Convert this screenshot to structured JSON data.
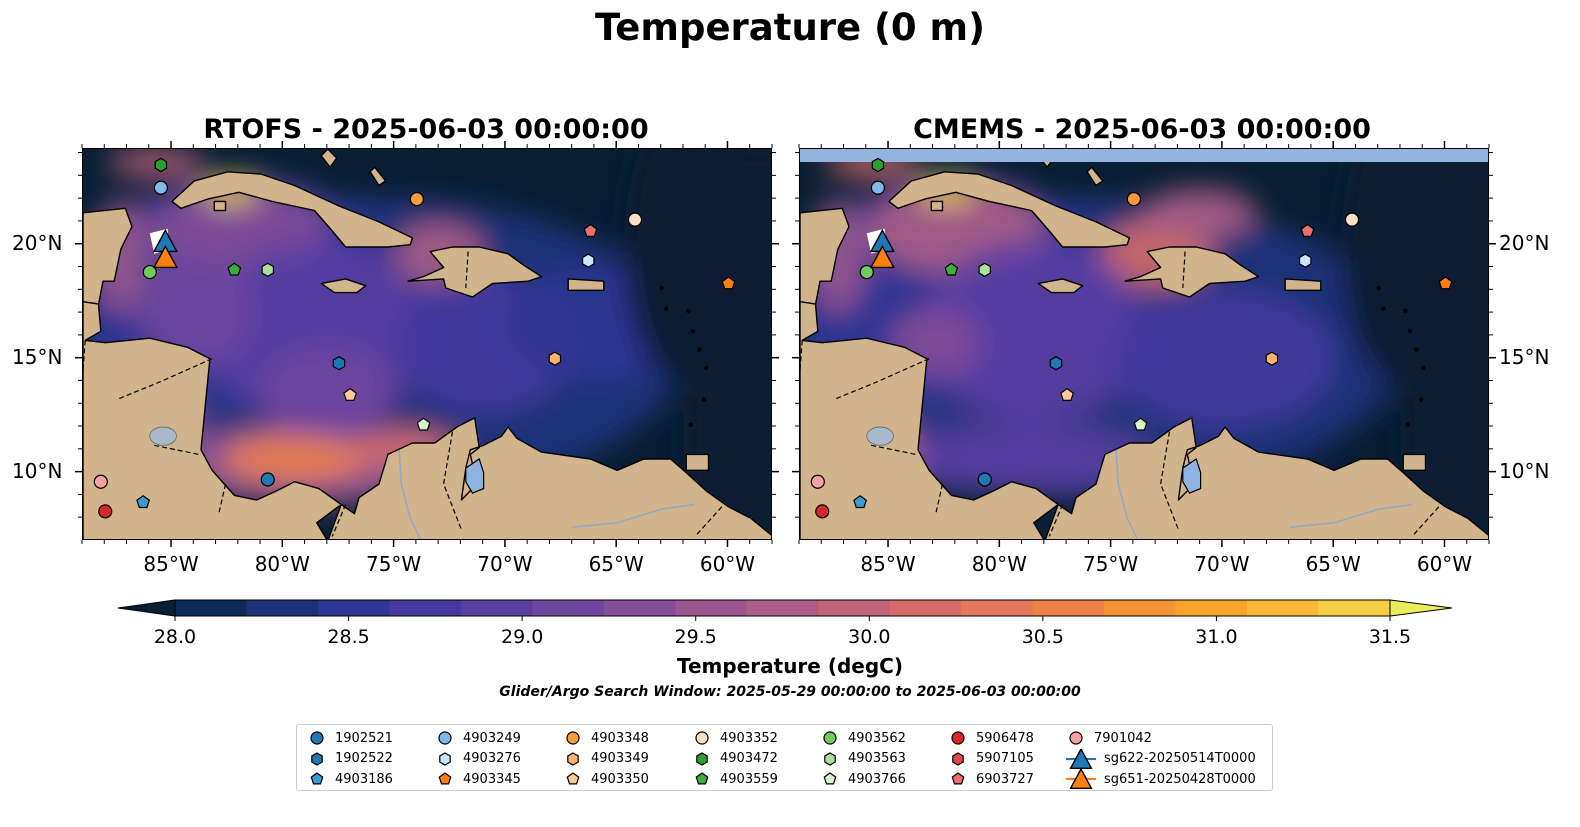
{
  "title": "Temperature (0 m)",
  "panels": [
    {
      "title": "RTOFS - 2025-06-03 00:00:00"
    },
    {
      "title": "CMEMS - 2025-06-03 00:00:00"
    }
  ],
  "axes": {
    "lon_ticks": [
      "85°W",
      "80°W",
      "75°W",
      "70°W",
      "65°W",
      "60°W"
    ],
    "lat_ticks": [
      "20°N",
      "15°N",
      "10°N"
    ],
    "lon_range": [
      -89,
      -58
    ],
    "lat_range": [
      7,
      24.2
    ]
  },
  "colorbar": {
    "label": "Temperature (degC)",
    "ticks": [
      "28.0",
      "28.5",
      "29.0",
      "29.5",
      "30.0",
      "30.5",
      "31.0",
      "31.5"
    ],
    "range": [
      28.0,
      31.5
    ],
    "extend": "both",
    "colors": [
      "#081e33",
      "#0d2a56",
      "#1c3278",
      "#2f3592",
      "#45399f",
      "#5a3ea2",
      "#6f469f",
      "#844e98",
      "#99568f",
      "#ad5e86",
      "#c2647a",
      "#d46c6c",
      "#e4765c",
      "#ef8249",
      "#f59236",
      "#f8a52d",
      "#f8ba36",
      "#f5d046",
      "#e8ef5a"
    ]
  },
  "search_window": "Glider/Argo Search Window: 2025-05-29 00:00:00 to 2025-06-03 00:00:00",
  "land_color": "#d2b48c",
  "lake_color": "#8fb3e0",
  "legend": [
    {
      "label": "1902521",
      "marker": "circle",
      "color": "#1f77b4"
    },
    {
      "label": "1902522",
      "marker": "hexagon",
      "color": "#1f77b4"
    },
    {
      "label": "4903186",
      "marker": "pentagon",
      "color": "#3a9bd0"
    },
    {
      "label": "4903249",
      "marker": "circle",
      "color": "#7fb9e6"
    },
    {
      "label": "4903276",
      "marker": "hexagon",
      "color": "#c9e6fb"
    },
    {
      "label": "4903345",
      "marker": "pentagon",
      "color": "#ff7f0e"
    },
    {
      "label": "4903348",
      "marker": "circle",
      "color": "#fd9a3c"
    },
    {
      "label": "4903349",
      "marker": "hexagon",
      "color": "#fdb26c"
    },
    {
      "label": "4903350",
      "marker": "pentagon",
      "color": "#fdc996"
    },
    {
      "label": "4903352",
      "marker": "circle",
      "color": "#fde0c5"
    },
    {
      "label": "4903472",
      "marker": "hexagon",
      "color": "#2ca02c"
    },
    {
      "label": "4903559",
      "marker": "pentagon",
      "color": "#3cae3c"
    },
    {
      "label": "4903562",
      "marker": "circle",
      "color": "#70cc5e"
    },
    {
      "label": "4903563",
      "marker": "hexagon",
      "color": "#a8e39a"
    },
    {
      "label": "4903766",
      "marker": "pentagon",
      "color": "#d6f5cc"
    },
    {
      "label": "5906478",
      "marker": "circle",
      "color": "#d62728"
    },
    {
      "label": "5907105",
      "marker": "hexagon",
      "color": "#e04a4a"
    },
    {
      "label": "6903727",
      "marker": "pentagon",
      "color": "#ee6e6e"
    },
    {
      "label": "7901042",
      "marker": "circle",
      "color": "#f4a1a1"
    },
    {
      "label": "sg622-20250514T0000",
      "marker": "triangle",
      "color": "#1f77b4"
    },
    {
      "label": "sg651-20250428T0000",
      "marker": "triangle",
      "color": "#ff7f0e"
    }
  ],
  "floats": [
    {
      "id": "4903472",
      "lon": -85.5,
      "lat": 23.5
    },
    {
      "id": "4903249",
      "lon": -85.5,
      "lat": 22.5
    },
    {
      "id": "4903348",
      "lon": -74.0,
      "lat": 22.0
    },
    {
      "id": "4903352",
      "lon": -64.2,
      "lat": 21.1
    },
    {
      "id": "6903727",
      "lon": -66.2,
      "lat": 20.6
    },
    {
      "id": "4903276",
      "lon": -66.3,
      "lat": 19.3
    },
    {
      "id": "4903559",
      "lon": -82.2,
      "lat": 18.9
    },
    {
      "id": "4903563",
      "lon": -80.7,
      "lat": 18.9
    },
    {
      "id": "4903562",
      "lon": -86.0,
      "lat": 18.8
    },
    {
      "id": "4903345",
      "lon": -60.0,
      "lat": 18.3
    },
    {
      "id": "4903350",
      "lon": -77.0,
      "lat": 13.4
    },
    {
      "id": "1902522",
      "lon": -77.5,
      "lat": 14.8
    },
    {
      "id": "4903349",
      "lon": -67.8,
      "lat": 15.0
    },
    {
      "id": "4903766",
      "lon": -73.7,
      "lat": 12.1
    },
    {
      "id": "1902521",
      "lon": -80.7,
      "lat": 9.7
    },
    {
      "id": "7901042",
      "lon": -88.2,
      "lat": 9.6
    },
    {
      "id": "4903186",
      "lon": -86.3,
      "lat": 8.7
    },
    {
      "id": "5906478",
      "lon": -88.0,
      "lat": 8.3
    }
  ],
  "gliders": [
    {
      "id": "sg622-20250514T0000",
      "lon": -85.3,
      "lat": 20.1
    },
    {
      "id": "sg651-20250428T0000",
      "lon": -85.3,
      "lat": 19.4
    }
  ]
}
